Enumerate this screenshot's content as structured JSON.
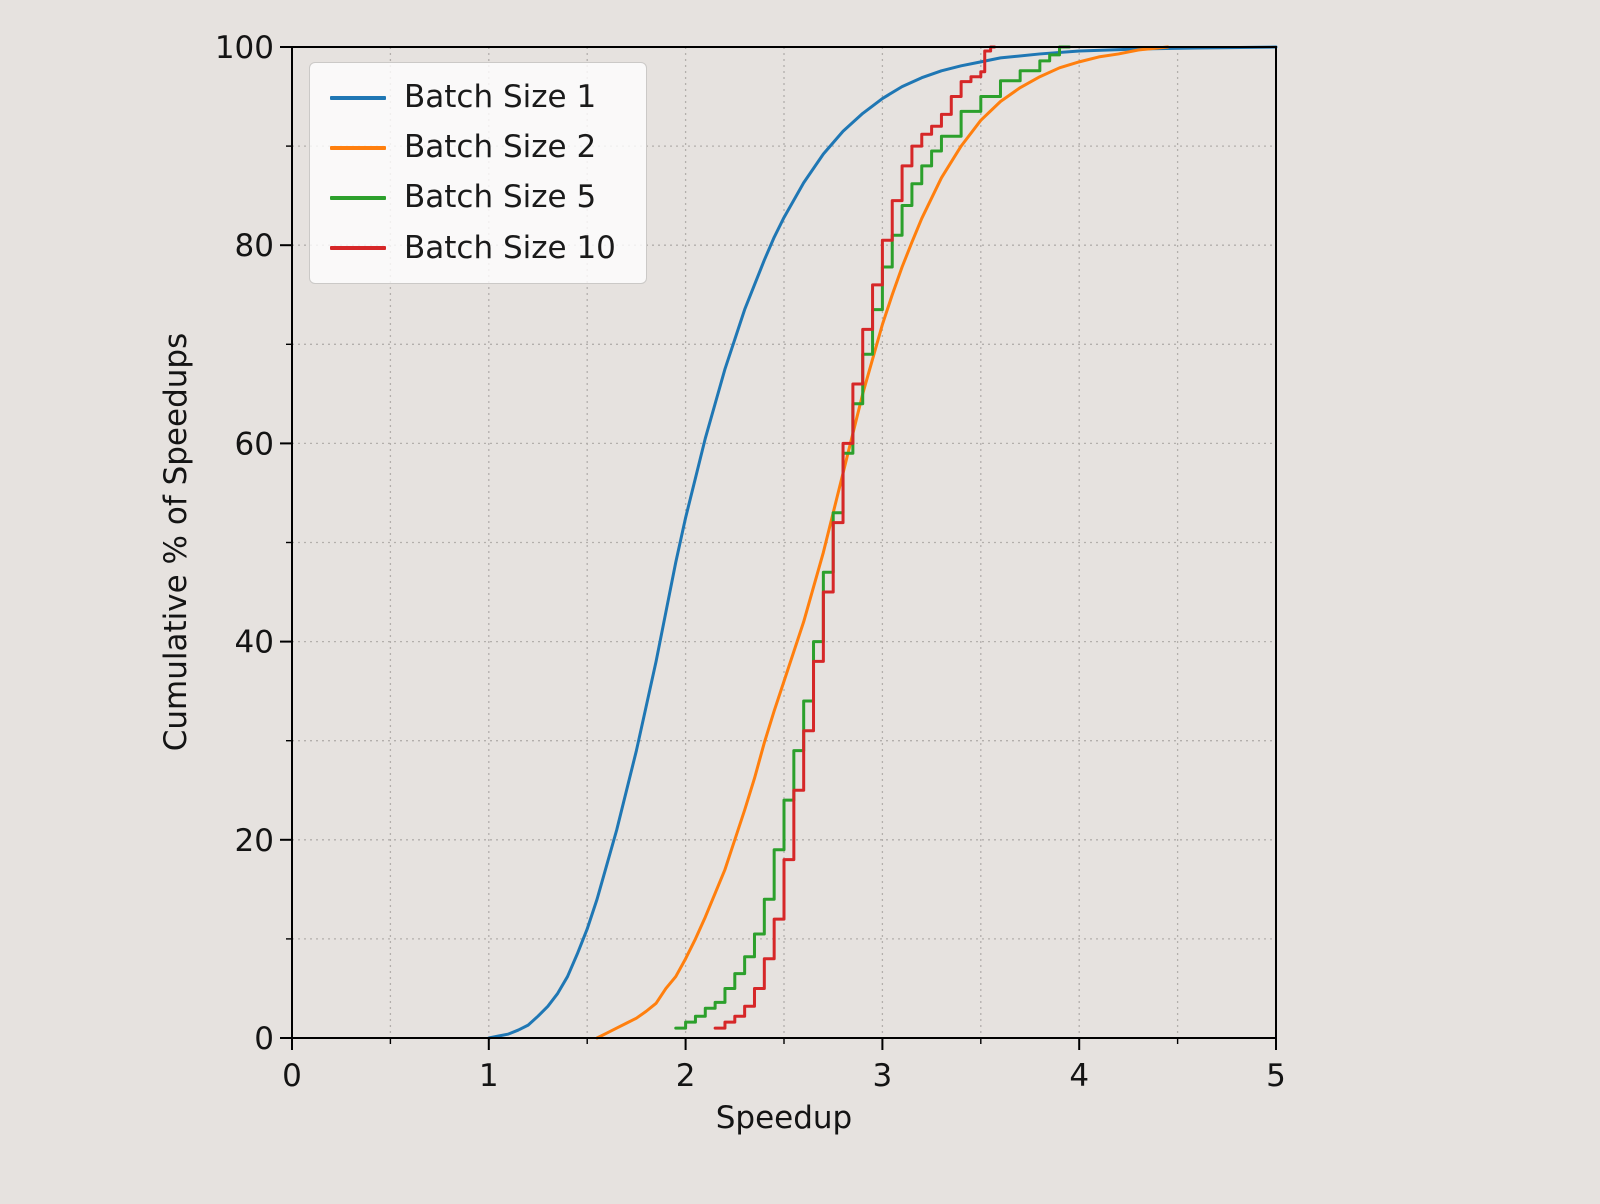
{
  "figure": {
    "background_color": "#e6e2df",
    "axes_background_color": "#e6e2df",
    "grid_color": "#b3afac",
    "spine_color": "#000000",
    "text_color": "#141414"
  },
  "chart_data": {
    "type": "line",
    "subtype": "empirical-cdf",
    "title": "",
    "xlabel": "Speedup",
    "ylabel": "Cumulative % of Speedups",
    "xlim": [
      0,
      5
    ],
    "ylim": [
      0,
      100
    ],
    "xticks": [
      0,
      1,
      2,
      3,
      4,
      5
    ],
    "yticks": [
      0,
      20,
      40,
      60,
      80,
      100
    ],
    "x_minor_step": 0.5,
    "y_minor_step": 10,
    "grid": "dotted, major and minor",
    "legend_position": "upper left",
    "series": [
      {
        "name": "Batch Size 1",
        "color": "#1f77b4",
        "style": "linear",
        "points": [
          [
            1.0,
            0
          ],
          [
            1.05,
            0.2
          ],
          [
            1.1,
            0.4
          ],
          [
            1.15,
            0.8
          ],
          [
            1.2,
            1.3
          ],
          [
            1.25,
            2.2
          ],
          [
            1.3,
            3.2
          ],
          [
            1.35,
            4.5
          ],
          [
            1.4,
            6.2
          ],
          [
            1.45,
            8.5
          ],
          [
            1.5,
            11
          ],
          [
            1.55,
            14
          ],
          [
            1.6,
            17.5
          ],
          [
            1.65,
            21
          ],
          [
            1.7,
            25
          ],
          [
            1.75,
            29
          ],
          [
            1.8,
            33.5
          ],
          [
            1.85,
            38
          ],
          [
            1.9,
            43
          ],
          [
            1.95,
            48
          ],
          [
            2.0,
            52.5
          ],
          [
            2.05,
            56.5
          ],
          [
            2.1,
            60.5
          ],
          [
            2.15,
            64
          ],
          [
            2.2,
            67.5
          ],
          [
            2.25,
            70.5
          ],
          [
            2.3,
            73.5
          ],
          [
            2.35,
            76
          ],
          [
            2.4,
            78.5
          ],
          [
            2.45,
            80.8
          ],
          [
            2.5,
            82.8
          ],
          [
            2.6,
            86.3
          ],
          [
            2.7,
            89.2
          ],
          [
            2.8,
            91.5
          ],
          [
            2.9,
            93.3
          ],
          [
            3.0,
            94.8
          ],
          [
            3.1,
            96
          ],
          [
            3.2,
            96.9
          ],
          [
            3.3,
            97.6
          ],
          [
            3.4,
            98.1
          ],
          [
            3.5,
            98.5
          ],
          [
            3.6,
            98.9
          ],
          [
            3.8,
            99.3
          ],
          [
            4.0,
            99.6
          ],
          [
            4.3,
            99.8
          ],
          [
            4.6,
            99.9
          ],
          [
            5.0,
            100
          ]
        ]
      },
      {
        "name": "Batch Size 2",
        "color": "#ff7f0e",
        "style": "linear",
        "points": [
          [
            1.55,
            0
          ],
          [
            1.6,
            0.5
          ],
          [
            1.65,
            1
          ],
          [
            1.7,
            1.5
          ],
          [
            1.75,
            2
          ],
          [
            1.8,
            2.7
          ],
          [
            1.85,
            3.5
          ],
          [
            1.9,
            5
          ],
          [
            1.95,
            6.2
          ],
          [
            2.0,
            8
          ],
          [
            2.05,
            10
          ],
          [
            2.1,
            12.2
          ],
          [
            2.15,
            14.6
          ],
          [
            2.2,
            17
          ],
          [
            2.25,
            20
          ],
          [
            2.3,
            23
          ],
          [
            2.35,
            26.2
          ],
          [
            2.4,
            29.8
          ],
          [
            2.45,
            33
          ],
          [
            2.5,
            36
          ],
          [
            2.55,
            39
          ],
          [
            2.6,
            42
          ],
          [
            2.65,
            45.5
          ],
          [
            2.7,
            49
          ],
          [
            2.75,
            53
          ],
          [
            2.8,
            57
          ],
          [
            2.85,
            61
          ],
          [
            2.9,
            65
          ],
          [
            2.95,
            68.5
          ],
          [
            3.0,
            72
          ],
          [
            3.05,
            75
          ],
          [
            3.1,
            77.8
          ],
          [
            3.15,
            80.3
          ],
          [
            3.2,
            82.7
          ],
          [
            3.3,
            86.8
          ],
          [
            3.4,
            90
          ],
          [
            3.5,
            92.6
          ],
          [
            3.6,
            94.5
          ],
          [
            3.7,
            95.9
          ],
          [
            3.8,
            97
          ],
          [
            3.9,
            97.9
          ],
          [
            4.0,
            98.5
          ],
          [
            4.1,
            99
          ],
          [
            4.2,
            99.3
          ],
          [
            4.3,
            99.7
          ],
          [
            4.45,
            100
          ]
        ]
      },
      {
        "name": "Batch Size 5",
        "color": "#2ca02c",
        "style": "step",
        "points": [
          [
            1.95,
            1
          ],
          [
            2.0,
            1.6
          ],
          [
            2.05,
            2.2
          ],
          [
            2.1,
            3
          ],
          [
            2.15,
            3.6
          ],
          [
            2.2,
            5
          ],
          [
            2.25,
            6.5
          ],
          [
            2.3,
            8.2
          ],
          [
            2.35,
            10.5
          ],
          [
            2.4,
            14
          ],
          [
            2.45,
            19
          ],
          [
            2.5,
            24
          ],
          [
            2.55,
            29
          ],
          [
            2.6,
            34
          ],
          [
            2.65,
            40
          ],
          [
            2.7,
            47
          ],
          [
            2.75,
            53
          ],
          [
            2.8,
            59
          ],
          [
            2.85,
            64
          ],
          [
            2.9,
            69
          ],
          [
            2.95,
            73.5
          ],
          [
            3.0,
            77.8
          ],
          [
            3.05,
            81
          ],
          [
            3.1,
            84
          ],
          [
            3.15,
            86.2
          ],
          [
            3.2,
            88
          ],
          [
            3.25,
            89.5
          ],
          [
            3.3,
            91
          ],
          [
            3.4,
            93.5
          ],
          [
            3.5,
            95
          ],
          [
            3.6,
            96.6
          ],
          [
            3.7,
            97.6
          ],
          [
            3.8,
            98.6
          ],
          [
            3.85,
            99.2
          ],
          [
            3.9,
            100
          ],
          [
            3.95,
            100
          ]
        ]
      },
      {
        "name": "Batch Size 10",
        "color": "#d62728",
        "style": "step",
        "points": [
          [
            2.15,
            1
          ],
          [
            2.2,
            1.6
          ],
          [
            2.25,
            2.2
          ],
          [
            2.3,
            3.2
          ],
          [
            2.35,
            5
          ],
          [
            2.4,
            8
          ],
          [
            2.45,
            12
          ],
          [
            2.5,
            18
          ],
          [
            2.55,
            25
          ],
          [
            2.6,
            31
          ],
          [
            2.65,
            38
          ],
          [
            2.7,
            45
          ],
          [
            2.75,
            52
          ],
          [
            2.8,
            60
          ],
          [
            2.85,
            66
          ],
          [
            2.9,
            71.5
          ],
          [
            2.95,
            76
          ],
          [
            3.0,
            80.5
          ],
          [
            3.05,
            84.5
          ],
          [
            3.1,
            88
          ],
          [
            3.15,
            90
          ],
          [
            3.2,
            91.2
          ],
          [
            3.25,
            92
          ],
          [
            3.3,
            93.2
          ],
          [
            3.35,
            95
          ],
          [
            3.4,
            96.5
          ],
          [
            3.45,
            97
          ],
          [
            3.5,
            97.5
          ],
          [
            3.52,
            99.6
          ],
          [
            3.55,
            100
          ],
          [
            3.57,
            100
          ]
        ]
      }
    ]
  }
}
